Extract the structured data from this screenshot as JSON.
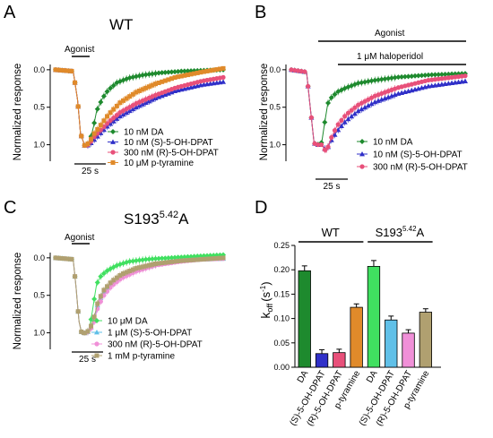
{
  "colors": {
    "DA": "#1e8a2e",
    "S_DPAT": "#3030c8",
    "R_DPAT": "#e8507a",
    "ptyr": "#e08a2a",
    "DA_light": "#40e060",
    "S_light": "#60c0e8",
    "R_light": "#f090d8",
    "ptyr_light": "#b0a070"
  },
  "chart_data": [
    {
      "panel": "A",
      "type": "line",
      "title": "WT",
      "agonist_label": "Agonist",
      "ylabel": "Normalized response",
      "yticks": [
        "0.0",
        "0.5",
        "1.0"
      ],
      "ylim": [
        1.22,
        -0.07
      ],
      "time_bar_label": "25 s",
      "series": [
        {
          "name": "10 nM DA",
          "marker": "diamond",
          "x": [
            0,
            12,
            15,
            17,
            20,
            23,
            26,
            28,
            32,
            36,
            42,
            50,
            60,
            72,
            86,
            100,
            115
          ],
          "y": [
            0,
            0.02,
            0.4,
            0.85,
            1.02,
            0.98,
            0.75,
            0.55,
            0.38,
            0.27,
            0.17,
            0.11,
            0.07,
            0.04,
            0.02,
            0.01,
            0
          ]
        },
        {
          "name": "10 nM (S)-5-OH-DPAT",
          "marker": "triangle",
          "x": [
            0,
            12,
            15,
            17,
            20,
            23,
            26,
            30,
            36,
            44,
            55,
            68,
            82,
            100,
            115
          ],
          "y": [
            0,
            0.02,
            0.4,
            0.85,
            1.02,
            1.0,
            0.94,
            0.86,
            0.74,
            0.62,
            0.5,
            0.38,
            0.28,
            0.2,
            0.16
          ]
        },
        {
          "name": "300 nM (R)-5-OH-DPAT",
          "marker": "circle",
          "x": [
            0,
            12,
            15,
            17,
            20,
            23,
            26,
            30,
            36,
            44,
            55,
            68,
            82,
            100,
            115
          ],
          "y": [
            0,
            0.02,
            0.4,
            0.85,
            1.02,
            0.99,
            0.9,
            0.82,
            0.7,
            0.57,
            0.45,
            0.34,
            0.24,
            0.15,
            0.1
          ]
        },
        {
          "name": "10 μM p-tyramine",
          "marker": "square",
          "x": [
            0,
            12,
            15,
            17,
            20,
            23,
            26,
            30,
            36,
            44,
            55,
            68,
            82,
            100,
            115
          ],
          "y": [
            0,
            0.02,
            0.4,
            0.85,
            1.02,
            0.97,
            0.86,
            0.76,
            0.6,
            0.44,
            0.3,
            0.19,
            0.1,
            0.03,
            -0.02
          ]
        }
      ]
    },
    {
      "panel": "B",
      "type": "line",
      "agonist_label": "Agonist",
      "antagonist_label": "1 μM haloperidol",
      "ylabel": "Normalized response",
      "yticks": [
        "0.0",
        "0.5",
        "1.0"
      ],
      "ylim": [
        1.22,
        -0.07
      ],
      "time_bar_label": "25 s",
      "series": [
        {
          "name": "10 nM DA",
          "marker": "diamond",
          "x": [
            0,
            10,
            13,
            15,
            17,
            20,
            22,
            24,
            26,
            30,
            36,
            44,
            55,
            70,
            90,
            115
          ],
          "y": [
            0,
            0.03,
            0.6,
            0.98,
            1.0,
            0.97,
            0.7,
            0.45,
            0.38,
            0.3,
            0.24,
            0.18,
            0.14,
            0.1,
            0.07,
            0.05
          ]
        },
        {
          "name": "10 nM (S)-5-OH-DPAT",
          "marker": "triangle",
          "x": [
            0,
            10,
            13,
            15,
            17,
            20,
            23,
            26,
            30,
            36,
            44,
            55,
            70,
            90,
            115
          ],
          "y": [
            0,
            0.03,
            0.6,
            0.98,
            1.0,
            1.0,
            1.08,
            0.95,
            0.82,
            0.68,
            0.55,
            0.43,
            0.32,
            0.22,
            0.15
          ]
        },
        {
          "name": "300 nM (R)-5-OH-DPAT",
          "marker": "circle",
          "x": [
            0,
            10,
            13,
            15,
            17,
            20,
            23,
            26,
            30,
            36,
            44,
            55,
            70,
            90,
            115
          ],
          "y": [
            0,
            0.03,
            0.6,
            0.98,
            1.0,
            1.0,
            1.1,
            0.92,
            0.75,
            0.6,
            0.47,
            0.35,
            0.24,
            0.14,
            0.08
          ]
        }
      ]
    },
    {
      "panel": "C",
      "type": "line",
      "title": "S193",
      "title_sup": "5.42",
      "title_suffix": "A",
      "agonist_label": "Agonist",
      "ylabel": "Normalized response",
      "yticks": [
        "0.0",
        "0.5",
        "1.0"
      ],
      "ylim": [
        1.22,
        -0.07
      ],
      "time_bar_label": "25 s",
      "series": [
        {
          "name": "10 μM DA",
          "marker": "diamond",
          "x": [
            0,
            12,
            14,
            16,
            18,
            20,
            23,
            26,
            28,
            31,
            36,
            42,
            50,
            62,
            78,
            95,
            115
          ],
          "y": [
            0,
            0.02,
            0.4,
            0.85,
            1.02,
            1.0,
            0.97,
            0.6,
            0.35,
            0.24,
            0.16,
            0.1,
            0.05,
            0.02,
            0,
            -0.02,
            -0.04
          ]
        },
        {
          "name": "1 μM (S)-5-OH-DPAT",
          "marker": "triangle",
          "x": [
            0,
            12,
            14,
            16,
            18,
            20,
            23,
            26,
            29,
            33,
            38,
            45,
            55,
            68,
            85,
            100,
            115
          ],
          "y": [
            0,
            0.02,
            0.4,
            0.85,
            1.02,
            1.0,
            0.98,
            0.85,
            0.6,
            0.45,
            0.34,
            0.24,
            0.16,
            0.09,
            0.04,
            0.02,
            0.01
          ]
        },
        {
          "name": "300 nM (R)-5-OH-DPAT",
          "marker": "circle",
          "x": [
            0,
            12,
            14,
            16,
            18,
            20,
            23,
            26,
            29,
            33,
            38,
            45,
            55,
            68,
            85,
            100,
            115
          ],
          "y": [
            0,
            0.02,
            0.4,
            0.85,
            1.02,
            1.0,
            0.98,
            0.88,
            0.65,
            0.5,
            0.38,
            0.27,
            0.18,
            0.1,
            0.05,
            0.02,
            0.01
          ]
        },
        {
          "name": "1 mM p-tyramine",
          "marker": "square",
          "x": [
            0,
            12,
            14,
            16,
            18,
            20,
            23,
            26,
            29,
            33,
            38,
            45,
            55,
            68,
            85,
            100,
            115
          ],
          "y": [
            0,
            0.02,
            0.4,
            0.85,
            1.02,
            1.0,
            0.97,
            0.82,
            0.58,
            0.43,
            0.32,
            0.22,
            0.14,
            0.08,
            0.04,
            0.02,
            0
          ]
        }
      ]
    },
    {
      "panel": "D",
      "type": "bar",
      "ylabel_main": "k",
      "ylabel_sub": "off",
      "ylabel_unit": "(s",
      "ylabel_unit_sup": "-1",
      "ylabel_close": ")",
      "ylim": [
        0,
        0.25
      ],
      "yticks": [
        "0.00",
        "0.05",
        "0.10",
        "0.15",
        "0.20",
        "0.25"
      ],
      "group_labels": [
        {
          "text": "WT"
        },
        {
          "text": "S193",
          "sup": "5.42",
          "suffix": "A"
        }
      ],
      "categories": [
        "DA",
        "(S)-5-OH-DPAT",
        "(R)-5-OH-DPAT",
        "p-tyramine",
        "DA",
        "(S)-5-OH-DPAT",
        "(R)-5-OH-DPAT",
        "p-tyramine"
      ],
      "values": [
        0.198,
        0.028,
        0.03,
        0.123,
        0.207,
        0.097,
        0.07,
        0.113
      ],
      "errors": [
        0.01,
        0.008,
        0.007,
        0.007,
        0.012,
        0.008,
        0.007,
        0.007
      ]
    }
  ]
}
